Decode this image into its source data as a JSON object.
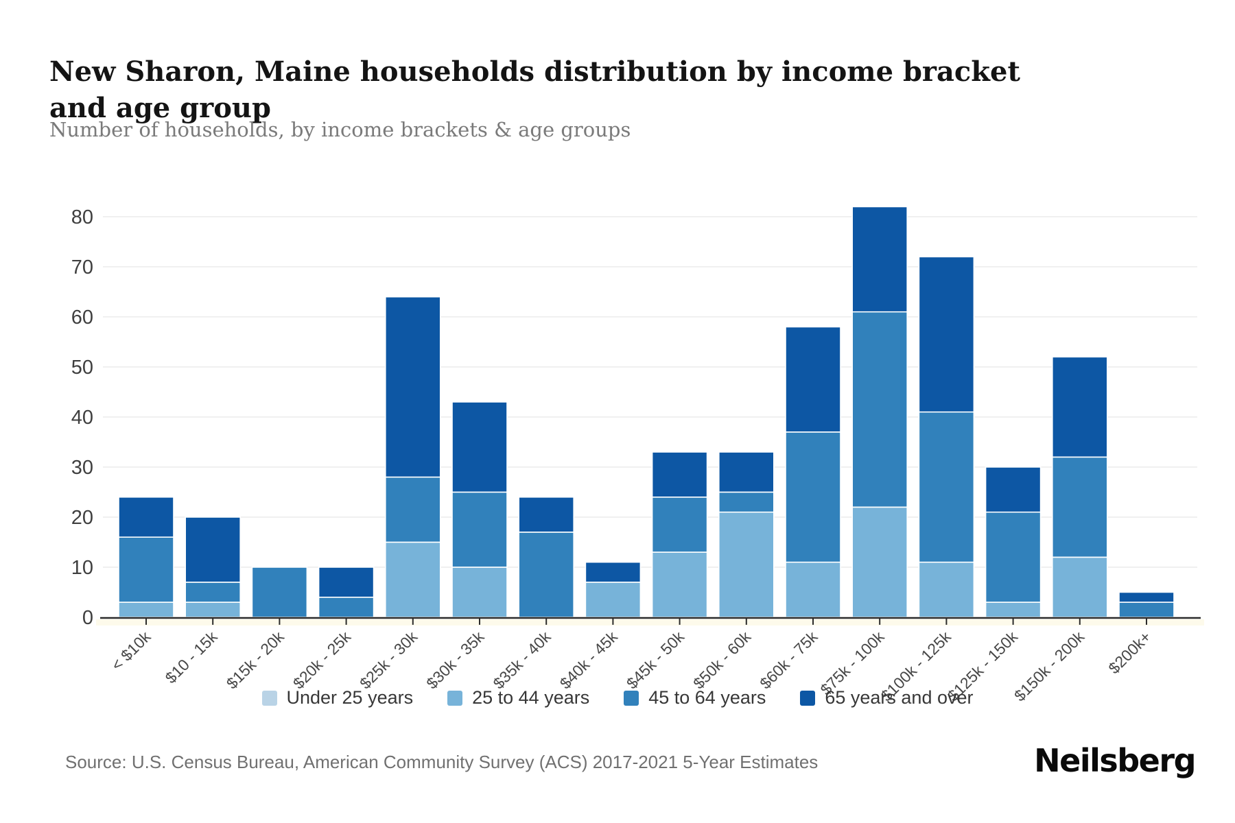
{
  "page": {
    "title": "New Sharon, Maine households distribution by income bracket and age group",
    "subtitle": "Number of households, by income brackets & age groups",
    "source": "Source: U.S. Census Bureau, American Community Survey (ACS) 2017-2021 5-Year Estimates",
    "brand": "Neilsberg"
  },
  "colors": {
    "under_25": "#b9d3e6",
    "age_25_44": "#77b3d9",
    "age_45_64": "#3181bb",
    "age_65_over": "#0d57a4",
    "gridline": "#ececec",
    "axis_line": "#2b2b2b",
    "y_tick_label": "#3f3f3f",
    "x_tick_label": "#474747",
    "baseline_highlight": "#fcf8e3"
  },
  "chart_data": {
    "type": "bar",
    "stacked": true,
    "title": "New Sharon, Maine households distribution by income bracket and age group",
    "subtitle": "Number of households, by income brackets & age groups",
    "xlabel": "",
    "ylabel": "",
    "ylim": [
      0,
      80
    ],
    "yticks": [
      0,
      10,
      20,
      30,
      40,
      50,
      60,
      70,
      80
    ],
    "grid": "horizontal",
    "legend_position": "bottom",
    "categories": [
      "< $10k",
      "$10 - 15k",
      "$15k - 20k",
      "$20k - 25k",
      "$25k - 30k",
      "$30k - 35k",
      "$35k - 40k",
      "$40k - 45k",
      "$45k - 50k",
      "$50k - 60k",
      "$60k - 75k",
      "$75k - 100k",
      "$100k - 125k",
      "$125k - 150k",
      "$150k - 200k",
      "$200k+"
    ],
    "series": [
      {
        "name": "Under 25 years",
        "color": "#b9d3e6",
        "values": [
          0,
          0,
          0,
          0,
          0,
          0,
          0,
          0,
          0,
          0,
          0,
          0,
          0,
          0,
          0,
          0
        ]
      },
      {
        "name": "25 to 44 years",
        "color": "#77b3d9",
        "values": [
          3,
          3,
          0,
          0,
          15,
          10,
          0,
          7,
          13,
          21,
          11,
          22,
          11,
          3,
          12,
          0
        ]
      },
      {
        "name": "45 to 64 years",
        "color": "#3181bb",
        "values": [
          13,
          4,
          10,
          4,
          13,
          15,
          17,
          0,
          11,
          4,
          26,
          39,
          30,
          18,
          20,
          3
        ]
      },
      {
        "name": "65 years and over",
        "color": "#0d57a4",
        "values": [
          8,
          13,
          0,
          6,
          36,
          18,
          7,
          4,
          9,
          8,
          21,
          21,
          31,
          9,
          20,
          2
        ]
      }
    ],
    "totals": [
      24,
      20,
      10,
      10,
      64,
      43,
      24,
      11,
      33,
      33,
      58,
      82,
      72,
      30,
      52,
      5
    ]
  }
}
